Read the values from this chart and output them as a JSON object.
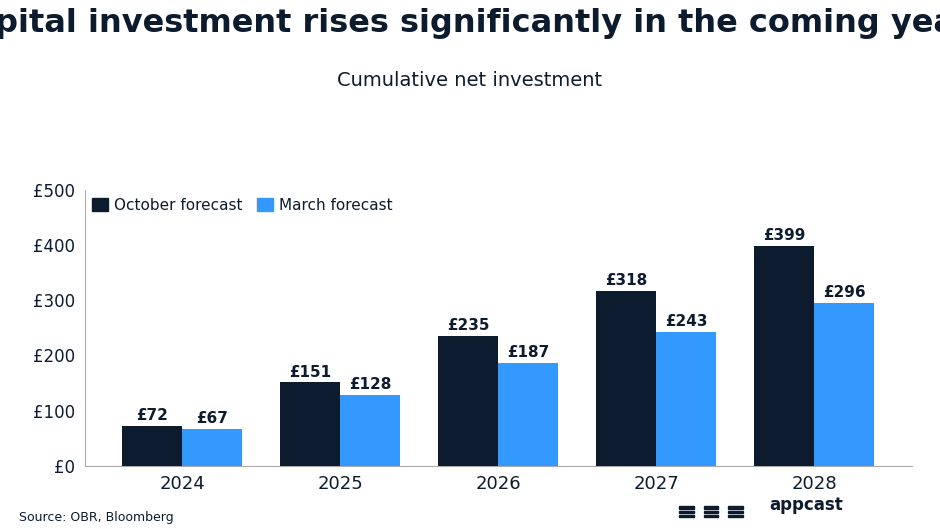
{
  "title": "Capital investment rises significantly in the coming years",
  "subtitle": "Cumulative net investment",
  "categories": [
    "2024",
    "2025",
    "2026",
    "2027",
    "2028"
  ],
  "october_values": [
    72,
    151,
    235,
    318,
    399
  ],
  "march_values": [
    67,
    128,
    187,
    243,
    296
  ],
  "october_color": "#0d1b2e",
  "march_color": "#3399ff",
  "background_color": "#ffffff",
  "title_fontsize": 23,
  "subtitle_fontsize": 14,
  "ylim": [
    0,
    500
  ],
  "yticks": [
    0,
    100,
    200,
    300,
    400,
    500
  ],
  "ytick_labels": [
    "£0",
    "£100",
    "£200",
    "£300",
    "£400",
    "£500"
  ],
  "legend_october": "October forecast",
  "legend_march": "March forecast",
  "source_text": "Source: OBR, Bloomberg",
  "bar_width": 0.38,
  "label_fontsize": 11
}
